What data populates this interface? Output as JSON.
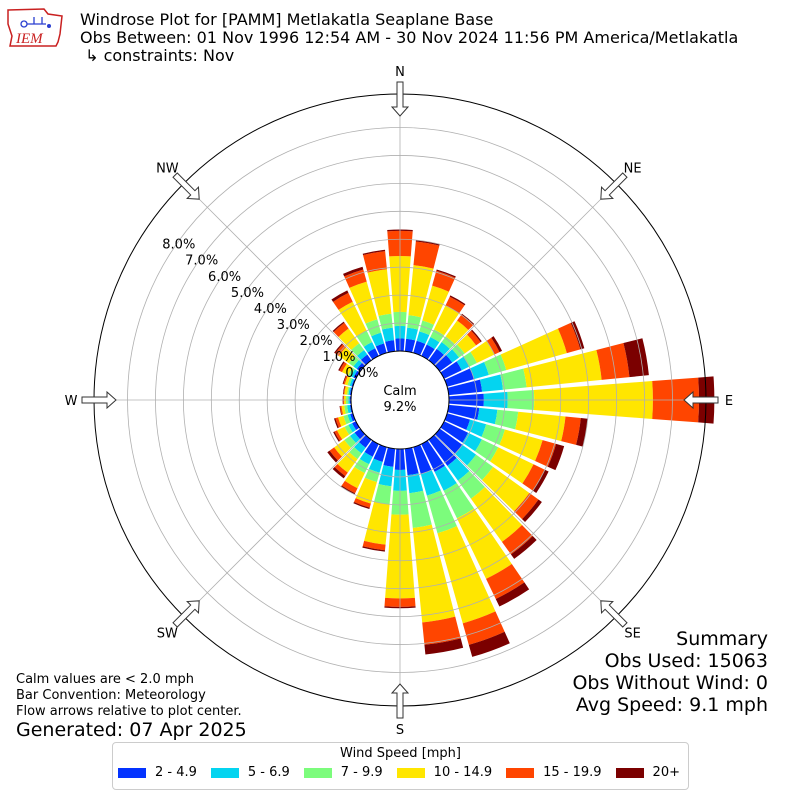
{
  "header": {
    "line1": "Windrose Plot for [PAMM] Metlakatla Seaplane Base",
    "line2": "Obs Between: 01 Nov 1996 12:54 AM - 30 Nov 2024 11:56 PM America/Metlakatla",
    "line3": " ↳ constraints: Nov",
    "logo_text": "IEM"
  },
  "summary": {
    "title": "Summary",
    "obs_used": "Obs Used: 15063",
    "obs_without_wind": "Obs Without Wind: 0",
    "avg_speed": "Avg Speed: 9.1 mph"
  },
  "notes": {
    "calm": "Calm values are < 2.0 mph",
    "bar": "Bar Convention: Meteorology",
    "flow": "Flow arrows relative to plot center."
  },
  "generated": "Generated: 07 Apr 2025",
  "legend": {
    "title": "Wind Speed [mph]",
    "items": [
      {
        "label": "2 - 4.9",
        "color": "#0433ff"
      },
      {
        "label": "5 - 6.9",
        "color": "#04d4f0"
      },
      {
        "label": "7 - 9.9",
        "color": "#7cfc7c"
      },
      {
        "label": "10 - 14.9",
        "color": "#ffe600"
      },
      {
        "label": "15 - 19.9",
        "color": "#ff4500"
      },
      {
        "label": "20+",
        "color": "#7b0000"
      }
    ]
  },
  "chart_data": {
    "type": "windrose",
    "calm_label": "Calm",
    "calm_value": "9.2%",
    "radial_tick_labels": [
      "0.0%",
      "1.0%",
      "2.0%",
      "3.0%",
      "4.0%",
      "5.0%",
      "6.0%",
      "7.0%",
      "8.0%"
    ],
    "radial_max": 9.2,
    "compass_labels": [
      "N",
      "NE",
      "E",
      "SE",
      "S",
      "SW",
      "W",
      "NW"
    ],
    "bins": [
      "2 - 4.9",
      "5 - 6.9",
      "7 - 9.9",
      "10 - 14.9",
      "15 - 19.9",
      "20+"
    ],
    "directions": [
      0,
      10,
      20,
      30,
      40,
      50,
      60,
      70,
      80,
      90,
      100,
      110,
      120,
      130,
      140,
      150,
      160,
      170,
      180,
      190,
      200,
      210,
      220,
      230,
      240,
      250,
      260,
      270,
      280,
      290,
      300,
      310,
      320,
      330,
      340,
      350
    ],
    "cumulative": [
      [
        0.45,
        0.9,
        1.4,
        3.4,
        4.3,
        4.35
      ],
      [
        0.45,
        0.85,
        1.3,
        3.1,
        3.95,
        4.0
      ],
      [
        0.45,
        0.8,
        1.2,
        2.5,
        3.05,
        3.1
      ],
      [
        0.45,
        0.75,
        1.05,
        2.0,
        2.35,
        2.4
      ],
      [
        0.5,
        0.8,
        1.05,
        1.75,
        2.0,
        2.05
      ],
      [
        0.55,
        0.85,
        1.1,
        1.6,
        1.8,
        1.85
      ],
      [
        0.7,
        1.0,
        1.3,
        2.0,
        2.2,
        2.3
      ],
      [
        1.0,
        1.55,
        2.2,
        4.45,
        4.95,
        5.1
      ],
      [
        1.2,
        1.95,
        2.8,
        5.5,
        6.5,
        7.2
      ],
      [
        1.25,
        2.1,
        3.05,
        7.3,
        8.95,
        9.5
      ],
      [
        1.1,
        1.75,
        2.5,
        4.2,
        4.75,
        5.0
      ],
      [
        0.85,
        1.45,
        2.15,
        3.55,
        4.05,
        4.35
      ],
      [
        0.95,
        1.5,
        2.15,
        3.55,
        4.0,
        4.15
      ],
      [
        1.0,
        1.6,
        2.35,
        3.95,
        4.35,
        4.5
      ],
      [
        1.15,
        1.8,
        2.6,
        4.5,
        5.05,
        5.25
      ],
      [
        1.1,
        1.85,
        2.95,
        5.35,
        6.15,
        6.45
      ],
      [
        1.0,
        1.8,
        3.2,
        6.55,
        7.35,
        7.8
      ],
      [
        0.95,
        1.6,
        2.85,
        6.25,
        7.05,
        7.4
      ],
      [
        0.75,
        1.5,
        2.35,
        5.35,
        5.65,
        5.7
      ],
      [
        0.65,
        1.35,
        2.0,
        3.45,
        3.65,
        3.7
      ],
      [
        0.55,
        0.95,
        1.3,
        2.1,
        2.25,
        2.3
      ],
      [
        0.5,
        0.8,
        1.15,
        1.75,
        1.95,
        2.0
      ],
      [
        0.35,
        0.6,
        0.85,
        1.45,
        1.6,
        1.7
      ],
      [
        0.25,
        0.45,
        0.7,
        1.15,
        1.35,
        1.45
      ],
      [
        0.15,
        0.3,
        0.45,
        0.75,
        0.85,
        0.9
      ],
      [
        0.1,
        0.2,
        0.35,
        0.55,
        0.65,
        0.7
      ],
      [
        0.05,
        0.15,
        0.25,
        0.35,
        0.4,
        0.42
      ],
      [
        0.05,
        0.1,
        0.18,
        0.25,
        0.28,
        0.3
      ],
      [
        0.05,
        0.1,
        0.15,
        0.25,
        0.28,
        0.3
      ],
      [
        0.05,
        0.12,
        0.2,
        0.3,
        0.35,
        0.38
      ],
      [
        0.1,
        0.2,
        0.3,
        0.55,
        0.65,
        0.7
      ],
      [
        0.15,
        0.3,
        0.5,
        0.95,
        1.1,
        1.15
      ],
      [
        0.25,
        0.45,
        0.75,
        1.4,
        1.65,
        1.7
      ],
      [
        0.3,
        0.55,
        1.0,
        2.15,
        2.5,
        2.6
      ],
      [
        0.35,
        0.75,
        1.25,
        2.65,
        3.1,
        3.2
      ],
      [
        0.4,
        0.85,
        1.35,
        2.95,
        3.6,
        3.65
      ]
    ]
  }
}
